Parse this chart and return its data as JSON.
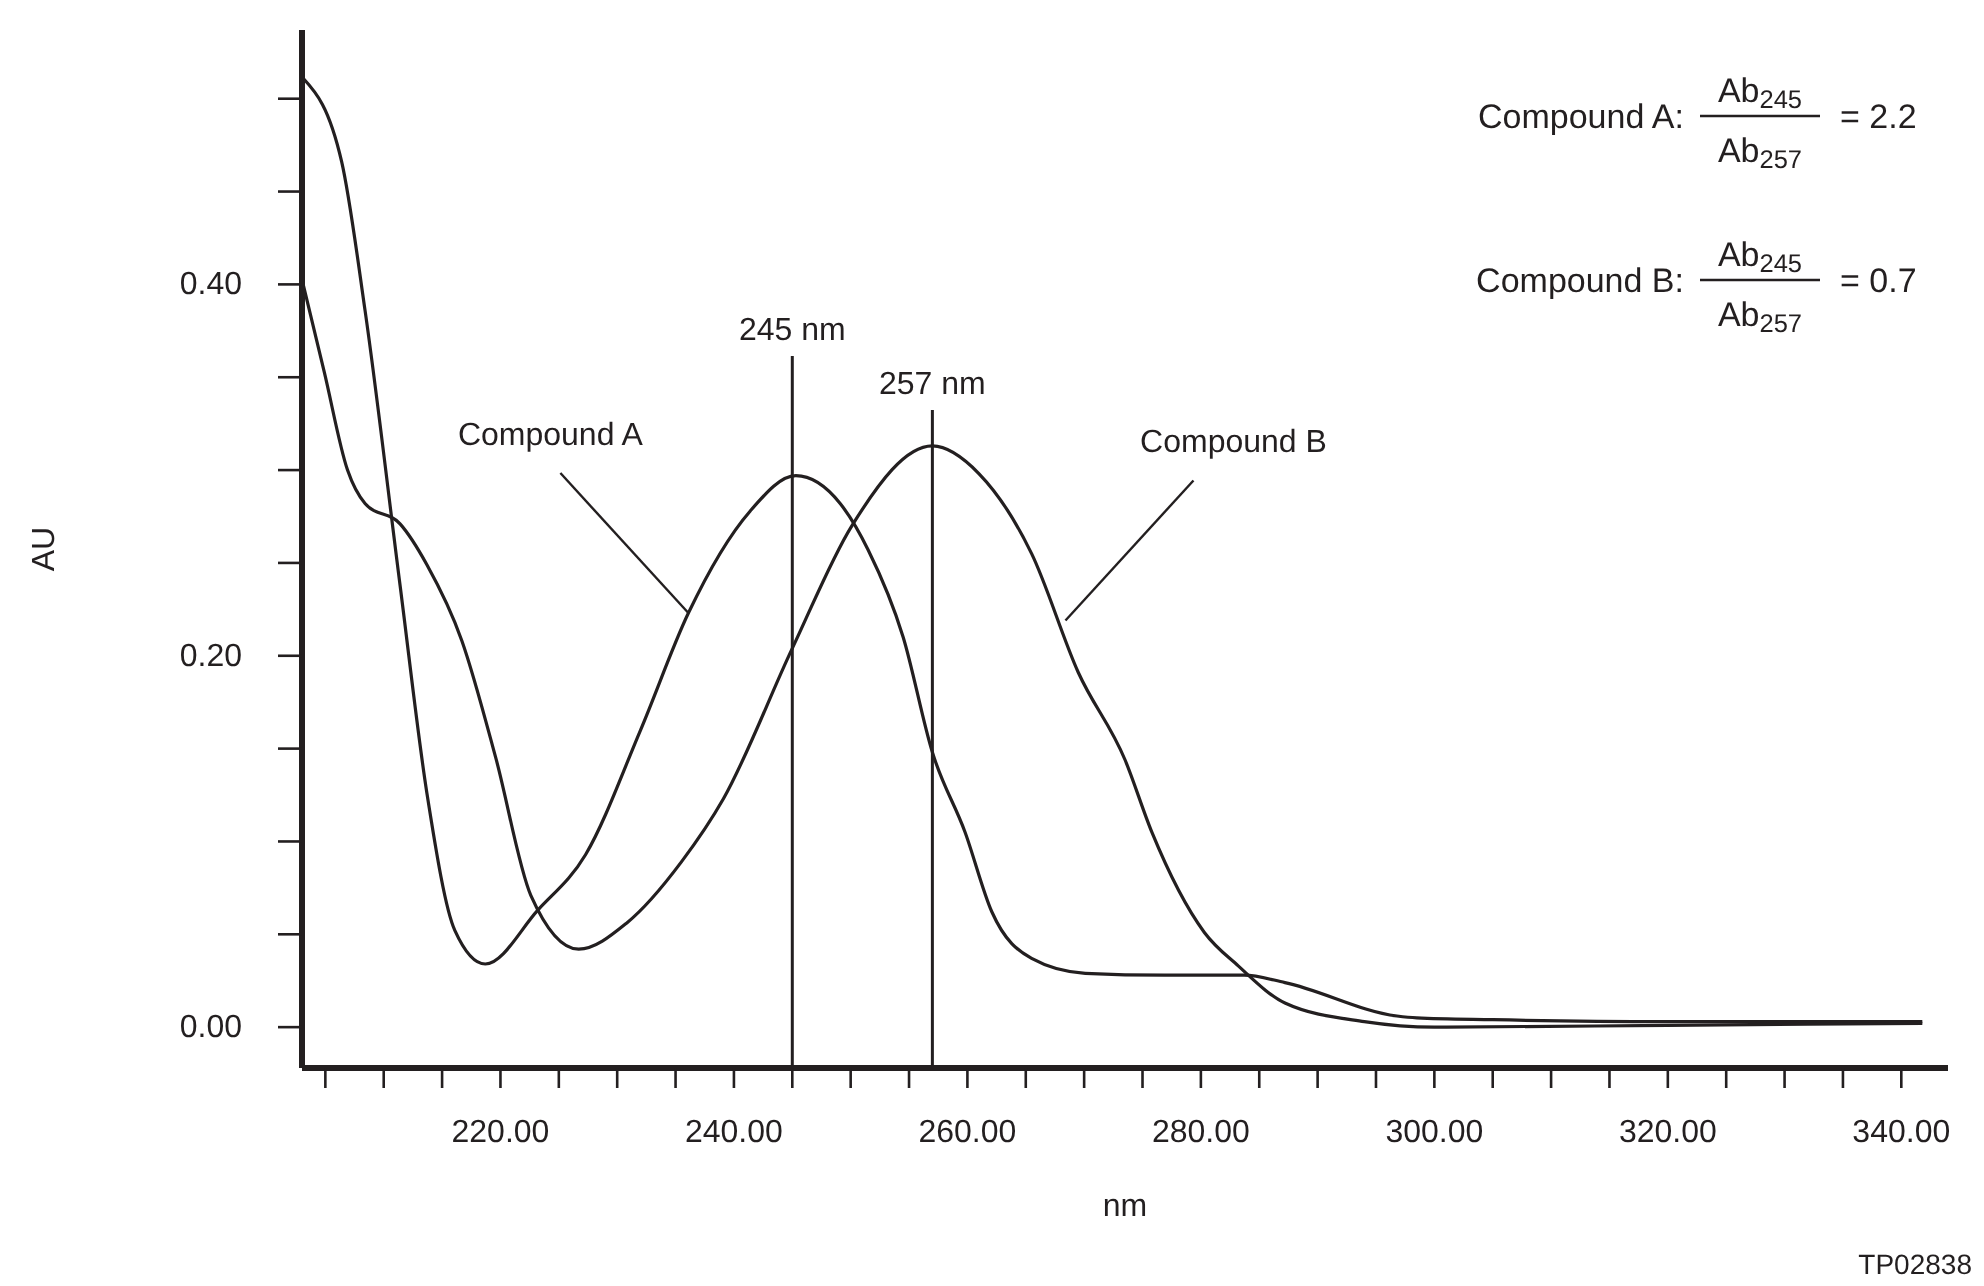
{
  "chart_data": {
    "type": "line",
    "xlabel": "nm",
    "ylabel": "AU",
    "xlim": [
      203,
      344
    ],
    "ylim": [
      -0.022,
      0.537
    ],
    "xticks": [
      {
        "value": 205,
        "label": null
      },
      {
        "value": 210,
        "label": null
      },
      {
        "value": 215,
        "label": null
      },
      {
        "value": 220,
        "label": "220.00"
      },
      {
        "value": 225,
        "label": null
      },
      {
        "value": 230,
        "label": null
      },
      {
        "value": 235,
        "label": null
      },
      {
        "value": 240,
        "label": "240.00"
      },
      {
        "value": 245,
        "label": null
      },
      {
        "value": 250,
        "label": null
      },
      {
        "value": 255,
        "label": null
      },
      {
        "value": 260,
        "label": "260.00"
      },
      {
        "value": 265,
        "label": null
      },
      {
        "value": 270,
        "label": null
      },
      {
        "value": 275,
        "label": null
      },
      {
        "value": 280,
        "label": "280.00"
      },
      {
        "value": 285,
        "label": null
      },
      {
        "value": 290,
        "label": null
      },
      {
        "value": 295,
        "label": null
      },
      {
        "value": 300,
        "label": "300.00"
      },
      {
        "value": 305,
        "label": null
      },
      {
        "value": 310,
        "label": null
      },
      {
        "value": 315,
        "label": null
      },
      {
        "value": 320,
        "label": "320.00"
      },
      {
        "value": 325,
        "label": null
      },
      {
        "value": 330,
        "label": null
      },
      {
        "value": 335,
        "label": null
      },
      {
        "value": 340,
        "label": "340.00"
      }
    ],
    "yticks": [
      {
        "value": 0,
        "label": "0.00"
      },
      {
        "value": 0.05,
        "label": null
      },
      {
        "value": 0.1,
        "label": null
      },
      {
        "value": 0.15,
        "label": null
      },
      {
        "value": 0.2,
        "label": "0.20"
      },
      {
        "value": 0.25,
        "label": null
      },
      {
        "value": 0.3,
        "label": null
      },
      {
        "value": 0.35,
        "label": null
      },
      {
        "value": 0.4,
        "label": "0.40"
      },
      {
        "value": 0.45,
        "label": null
      },
      {
        "value": 0.5,
        "label": null
      }
    ],
    "grid": false,
    "marker": "none",
    "line_style": "solid",
    "series": [
      {
        "color": "#231f20",
        "x": [
          203.1,
          206.4,
          208.4,
          211.4,
          213.7,
          216.1,
          218.7,
          223.2,
          227.3,
          232.0,
          236.1,
          241.4,
          245.3,
          249.1,
          251.5,
          254.5,
          257.0,
          259.8,
          262.1,
          265.5,
          270.1,
          276.9,
          283.7,
          287.2,
          296.8,
          298.5,
          305,
          320,
          341.8
        ],
        "values": [
          0.511,
          0.466,
          0.386,
          0.238,
          0.126,
          0.052,
          0.034,
          0.063,
          0.093,
          0.16,
          0.223,
          0.278,
          0.297,
          0.282,
          0.257,
          0.21,
          0.148,
          0.105,
          0.062,
          0.037,
          0.029,
          0.028,
          0.028,
          0.024,
          0.006,
          0.005,
          0.004,
          0.003,
          0.003
        ]
      },
      {
        "color": "#231f20",
        "x": [
          203.1,
          204.9,
          206.9,
          208.4,
          211.4,
          213.7,
          216.7,
          219.6,
          222.6,
          226.7,
          230.8,
          235.5,
          239.1,
          245.0,
          250.1,
          257.0,
          261.0,
          265.5,
          269.5,
          273.5,
          275.8,
          280.3,
          283.2,
          287.2,
          294.0,
          300,
          320,
          341.8
        ],
        "values": [
          0.4,
          0.353,
          0.3,
          0.282,
          0.271,
          0.249,
          0.208,
          0.145,
          0.071,
          0.042,
          0.056,
          0.089,
          0.123,
          0.204,
          0.27,
          0.313,
          0.298,
          0.255,
          0.191,
          0.144,
          0.105,
          0.051,
          0.033,
          0.013,
          0.003,
          0.0,
          0.001,
          0.002
        ]
      }
    ],
    "ref_lines": [
      {
        "axis": "x",
        "value": 245,
        "label": "245 nm",
        "color": "#231f20"
      },
      {
        "axis": "x",
        "value": 257,
        "label": "257 nm",
        "color": "#231f20"
      }
    ],
    "annotations": [
      {
        "text": "Compound A",
        "x": 236.1,
        "y": 0.223
      },
      {
        "text": "Compound B",
        "x": 268.4,
        "y": 0.219
      },
      "Compound A:",
      "Ab$_{245}$",
      "Ab$_{257}$",
      "= 2.2",
      "Compound B:",
      "Ab$_{245}$",
      "Ab$_{257}$",
      "= 0.7",
      "TP02838"
    ]
  }
}
